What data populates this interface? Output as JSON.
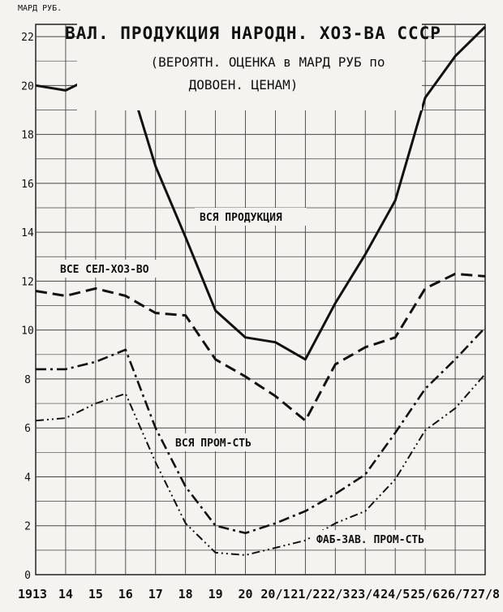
{
  "chart_data": {
    "type": "line",
    "title": "ВАЛ. ПРОДУКЦИЯ НАРОДН. ХОЗ-ВА СССР",
    "subtitle_line1": "(ВЕРОЯТН. ОЦЕНКА в МАРД РУБ по",
    "subtitle_line2": "ДОВОЕН. ЦЕНАМ)",
    "ylabel": "МАРД РУБ.",
    "xlabel": "",
    "ylim": [
      0,
      22.5
    ],
    "yticks": [
      0,
      2,
      4,
      6,
      8,
      10,
      12,
      14,
      16,
      18,
      20,
      22
    ],
    "grid": true,
    "categories": [
      "1913",
      "14",
      "15",
      "16",
      "17",
      "18",
      "19",
      "20",
      "20/1",
      "21/2",
      "22/3",
      "23/4",
      "24/5",
      "25/6",
      "26/7",
      "27/8"
    ],
    "series": [
      {
        "name": "ВСЯ ПРОДУКЦИЯ",
        "style": "solid",
        "values": [
          20.0,
          19.8,
          20.4,
          20.7,
          16.7,
          13.8,
          10.8,
          9.7,
          9.5,
          8.8,
          11.1,
          13.1,
          15.3,
          19.5,
          21.2,
          22.4
        ]
      },
      {
        "name": "ВСЕ СЕЛ-ХОЗ-ВО",
        "style": "dashed",
        "values": [
          11.6,
          11.4,
          11.7,
          11.4,
          10.7,
          10.6,
          8.8,
          8.1,
          7.3,
          6.3,
          8.6,
          9.3,
          9.7,
          11.7,
          12.3,
          12.2
        ]
      },
      {
        "name": "ВСЯ ПРОМ-СТЬ",
        "style": "dashdot",
        "values": [
          8.4,
          8.4,
          8.7,
          9.2,
          6.0,
          3.6,
          2.0,
          1.7,
          2.1,
          2.6,
          3.3,
          4.1,
          5.8,
          7.6,
          8.8,
          10.1
        ]
      },
      {
        "name": "ФАБ-ЗАВ. ПРОМ-СТЬ",
        "style": "dashdotdot",
        "values": [
          6.3,
          6.4,
          7.0,
          7.4,
          4.6,
          2.1,
          0.9,
          0.8,
          1.1,
          1.4,
          2.1,
          2.6,
          3.9,
          5.9,
          6.8,
          8.2
        ]
      }
    ]
  }
}
